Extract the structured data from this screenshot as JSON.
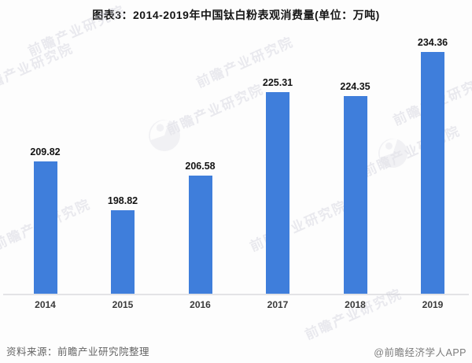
{
  "title": "图表3：2014-2019年中国钛白粉表观消费量(单位：万吨)",
  "chart_data": {
    "type": "bar",
    "title": "图表3：2014-2019年中国钛白粉表观消费量(单位：万吨)",
    "unit": "万吨",
    "categories": [
      "2014",
      "2015",
      "2016",
      "2017",
      "2018",
      "2019"
    ],
    "values": [
      209.82,
      198.82,
      206.58,
      225.31,
      224.35,
      234.36
    ],
    "value_labels": [
      "209.82",
      "198.82",
      "206.58",
      "225.31",
      "224.35",
      "234.36"
    ],
    "xlabel": "",
    "ylabel": "",
    "ylim": [
      180,
      240
    ],
    "grid": false,
    "legend": false,
    "bar_color": "#3F7EDB",
    "axis_line_color": "#e3e3e6"
  },
  "watermark": {
    "text": "前瞻产业研究院",
    "logo_icon": "qianzhan-circle-logo"
  },
  "footer": {
    "source": "资料来源：前瞻产业研究院整理",
    "credit": "@前瞻经济学人APP"
  }
}
